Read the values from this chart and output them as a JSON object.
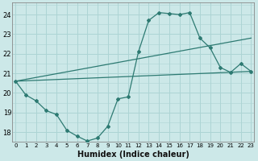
{
  "xlabel": "Humidex (Indice chaleur)",
  "bg_color": "#cce8e8",
  "grid_color": "#add4d4",
  "line_color": "#2d7a72",
  "x_ticks": [
    0,
    1,
    2,
    3,
    4,
    5,
    6,
    7,
    8,
    9,
    10,
    11,
    12,
    13,
    14,
    15,
    16,
    17,
    18,
    19,
    20,
    21,
    22,
    23
  ],
  "y_ticks": [
    18,
    19,
    20,
    21,
    22,
    23,
    24
  ],
  "xlim": [
    -0.3,
    23.3
  ],
  "ylim": [
    17.5,
    24.6
  ],
  "series1_x": [
    0,
    1,
    2,
    3,
    4,
    5,
    6,
    7,
    8,
    9,
    10,
    11,
    12,
    13,
    14,
    15,
    16,
    17,
    18,
    19,
    20,
    21,
    22,
    23
  ],
  "series1_y": [
    20.6,
    19.9,
    19.6,
    19.1,
    18.9,
    18.1,
    17.8,
    17.55,
    17.7,
    18.3,
    19.7,
    19.8,
    22.1,
    23.7,
    24.1,
    24.05,
    24.0,
    24.1,
    22.8,
    22.3,
    21.3,
    21.05,
    21.5,
    21.1
  ],
  "series2_x": [
    0,
    23
  ],
  "series2_y": [
    20.6,
    22.8
  ],
  "series3_x": [
    0,
    23
  ],
  "series3_y": [
    20.6,
    21.1
  ]
}
